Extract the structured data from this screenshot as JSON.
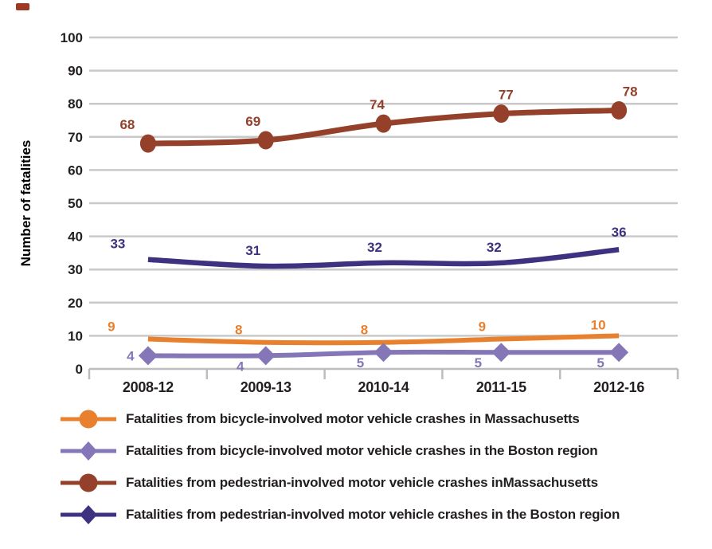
{
  "chart_data": {
    "type": "line",
    "categories": [
      "2008-12",
      "2009-13",
      "2010-14",
      "2011-15",
      "2012-16"
    ],
    "series": [
      {
        "name": "Fatalities from bicycle-involved motor vehicle crashes in Massachusetts",
        "values": [
          9,
          8,
          8,
          9,
          10
        ],
        "color": "#E8802D",
        "marker": "circle",
        "markers_on_plot": false
      },
      {
        "name": "Fatalities from bicycle-involved motor vehicle crashes in the Boston region",
        "values": [
          4,
          4,
          5,
          5,
          5
        ],
        "color": "#8577B7",
        "marker": "diamond",
        "markers_on_plot": true
      },
      {
        "name": "Fatalities from pedestrian-involved motor vehicle crashes inMassachusetts",
        "values": [
          68,
          69,
          74,
          77,
          78
        ],
        "color": "#94402B",
        "marker": "circle",
        "markers_on_plot": true
      },
      {
        "name": "Fatalities from pedestrian-involved motor vehicle crashes in the Boston region",
        "values": [
          33,
          31,
          32,
          32,
          36
        ],
        "color": "#3E3180",
        "marker": "diamond",
        "markers_on_plot": false
      }
    ],
    "title": "",
    "xlabel": "",
    "ylabel": "Number of fatalities",
    "ylim": [
      0,
      100
    ],
    "yticks": [
      0,
      10,
      20,
      30,
      40,
      50,
      60,
      70,
      80,
      90,
      100
    ],
    "grid": true,
    "line_style": "smoothed",
    "data_labels": true,
    "legend_position": "bottom"
  },
  "colors": {
    "gridline": "#C9C9C9",
    "axis": "#BDBDBD",
    "text": "#231F20",
    "corner_mark": "#9E3926"
  }
}
